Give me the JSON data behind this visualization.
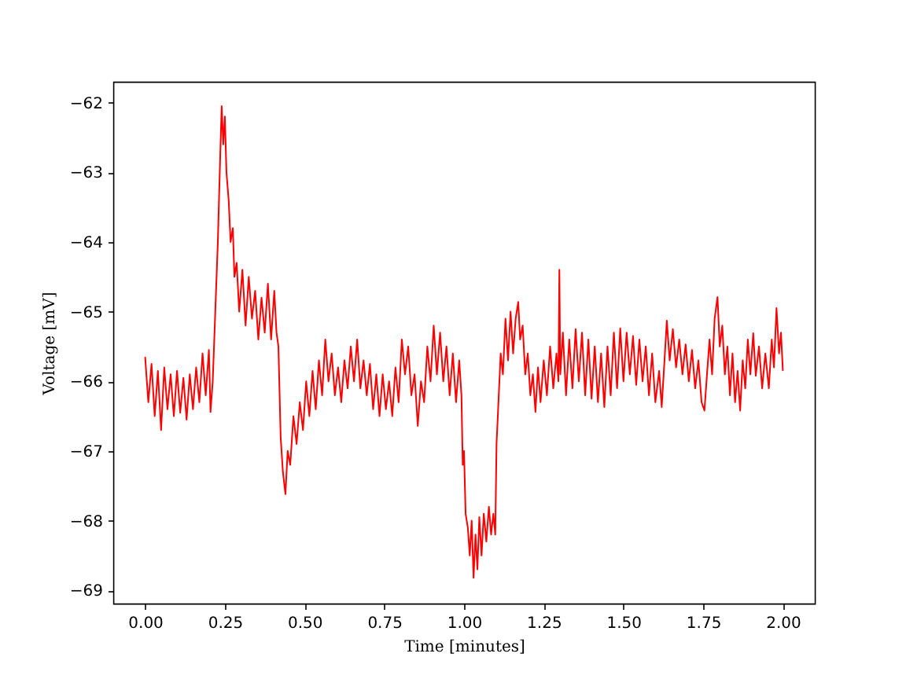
{
  "chart_data": {
    "type": "line",
    "xlabel": "Time [minutes]",
    "ylabel": "Voltage [mV]",
    "xlim": [
      -0.1,
      2.1
    ],
    "ylim": [
      -69.19,
      -61.7
    ],
    "xticks": [
      {
        "value": 0,
        "label": "0.00"
      },
      {
        "value": 0.25,
        "label": "0.25"
      },
      {
        "value": 0.5,
        "label": "0.50"
      },
      {
        "value": 0.75,
        "label": "0.75"
      },
      {
        "value": 1,
        "label": "1.00"
      },
      {
        "value": 1.25,
        "label": "1.25"
      },
      {
        "value": 1.5,
        "label": "1.50"
      },
      {
        "value": 1.75,
        "label": "1.75"
      },
      {
        "value": 2,
        "label": "2.00"
      }
    ],
    "yticks": [
      {
        "value": -69,
        "label": "−69"
      },
      {
        "value": -68,
        "label": "−68"
      },
      {
        "value": -67,
        "label": "−67"
      },
      {
        "value": -66,
        "label": "−66"
      },
      {
        "value": -65,
        "label": "−65"
      },
      {
        "value": -64,
        "label": "−64"
      },
      {
        "value": -63,
        "label": "−63"
      },
      {
        "value": -62,
        "label": "−62"
      }
    ],
    "x": [
      0.0,
      0.01,
      0.02,
      0.03,
      0.04,
      0.05,
      0.06,
      0.07,
      0.08,
      0.09,
      0.1,
      0.11,
      0.12,
      0.13,
      0.14,
      0.15,
      0.16,
      0.17,
      0.18,
      0.19,
      0.2,
      0.205,
      0.212,
      0.22,
      0.228,
      0.234,
      0.24,
      0.245,
      0.25,
      0.255,
      0.262,
      0.268,
      0.275,
      0.28,
      0.287,
      0.295,
      0.305,
      0.315,
      0.325,
      0.335,
      0.345,
      0.355,
      0.365,
      0.375,
      0.385,
      0.395,
      0.405,
      0.412,
      0.418,
      0.425,
      0.432,
      0.44,
      0.447,
      0.455,
      0.465,
      0.475,
      0.485,
      0.495,
      0.505,
      0.515,
      0.525,
      0.535,
      0.545,
      0.555,
      0.565,
      0.575,
      0.585,
      0.595,
      0.605,
      0.615,
      0.625,
      0.635,
      0.645,
      0.655,
      0.665,
      0.675,
      0.685,
      0.695,
      0.705,
      0.715,
      0.725,
      0.735,
      0.745,
      0.755,
      0.765,
      0.775,
      0.785,
      0.795,
      0.805,
      0.815,
      0.825,
      0.835,
      0.845,
      0.855,
      0.865,
      0.875,
      0.885,
      0.895,
      0.905,
      0.915,
      0.925,
      0.935,
      0.945,
      0.955,
      0.965,
      0.975,
      0.985,
      0.992,
      0.996,
      1.0,
      1.005,
      1.012,
      1.018,
      1.024,
      1.03,
      1.036,
      1.042,
      1.048,
      1.055,
      1.062,
      1.07,
      1.078,
      1.085,
      1.092,
      1.098,
      1.102,
      1.108,
      1.115,
      1.122,
      1.13,
      1.138,
      1.146,
      1.154,
      1.162,
      1.17,
      1.176,
      1.184,
      1.192,
      1.2,
      1.208,
      1.216,
      1.224,
      1.232,
      1.24,
      1.25,
      1.26,
      1.27,
      1.28,
      1.29,
      1.296,
      1.299,
      1.302,
      1.31,
      1.32,
      1.33,
      1.34,
      1.35,
      1.36,
      1.37,
      1.38,
      1.39,
      1.4,
      1.41,
      1.42,
      1.43,
      1.44,
      1.45,
      1.46,
      1.47,
      1.48,
      1.49,
      1.5,
      1.51,
      1.52,
      1.53,
      1.54,
      1.55,
      1.56,
      1.57,
      1.58,
      1.59,
      1.6,
      1.612,
      1.62,
      1.63,
      1.636,
      1.645,
      1.655,
      1.665,
      1.675,
      1.685,
      1.695,
      1.705,
      1.715,
      1.725,
      1.735,
      1.745,
      1.754,
      1.762,
      1.77,
      1.778,
      1.786,
      1.795,
      1.802,
      1.81,
      1.818,
      1.826,
      1.834,
      1.842,
      1.85,
      1.858,
      1.866,
      1.874,
      1.882,
      1.89,
      1.898,
      1.907,
      1.915,
      1.925,
      1.935,
      1.945,
      1.956,
      1.965,
      1.972,
      1.98,
      1.988,
      1.994,
      2.0
    ],
    "series": [
      {
        "color": "#ff0000",
        "values": [
          -65.65,
          -66.3,
          -65.75,
          -66.5,
          -65.85,
          -66.7,
          -65.8,
          -66.4,
          -65.9,
          -66.5,
          -65.85,
          -66.45,
          -65.95,
          -66.55,
          -65.9,
          -66.4,
          -65.8,
          -66.3,
          -65.6,
          -66.2,
          -65.55,
          -66.44,
          -66.0,
          -65.0,
          -64.0,
          -63.0,
          -62.05,
          -62.6,
          -62.2,
          -63.0,
          -63.4,
          -64.0,
          -63.8,
          -64.5,
          -64.3,
          -65.0,
          -64.4,
          -65.2,
          -64.5,
          -65.1,
          -64.7,
          -65.4,
          -64.8,
          -65.3,
          -64.6,
          -65.4,
          -64.7,
          -65.3,
          -65.5,
          -66.8,
          -67.3,
          -67.62,
          -67.0,
          -67.2,
          -66.5,
          -66.9,
          -66.3,
          -66.7,
          -66.0,
          -66.5,
          -65.85,
          -66.4,
          -65.7,
          -66.2,
          -65.4,
          -66.0,
          -65.6,
          -66.2,
          -65.8,
          -66.3,
          -65.7,
          -66.1,
          -65.5,
          -66.0,
          -65.4,
          -66.1,
          -65.7,
          -66.2,
          -65.75,
          -66.4,
          -65.9,
          -66.5,
          -65.9,
          -66.4,
          -66.0,
          -66.5,
          -65.8,
          -66.3,
          -65.4,
          -65.9,
          -65.5,
          -66.2,
          -65.9,
          -66.64,
          -66.0,
          -66.3,
          -65.5,
          -66.0,
          -65.2,
          -65.9,
          -65.3,
          -66.0,
          -65.5,
          -66.2,
          -65.6,
          -66.3,
          -65.7,
          -66.2,
          -67.2,
          -67.0,
          -67.9,
          -68.1,
          -68.5,
          -68.0,
          -68.82,
          -68.2,
          -68.7,
          -67.95,
          -68.5,
          -67.9,
          -68.3,
          -67.8,
          -68.2,
          -67.9,
          -68.2,
          -66.9,
          -66.3,
          -65.6,
          -65.9,
          -65.1,
          -65.7,
          -65.0,
          -65.6,
          -65.1,
          -64.86,
          -65.4,
          -65.2,
          -65.9,
          -65.6,
          -66.2,
          -65.9,
          -66.44,
          -65.8,
          -66.3,
          -65.7,
          -66.2,
          -65.5,
          -66.1,
          -65.6,
          -66.0,
          -64.4,
          -65.9,
          -65.3,
          -66.2,
          -65.4,
          -66.1,
          -65.25,
          -66.0,
          -65.3,
          -66.2,
          -65.4,
          -66.25,
          -65.5,
          -66.3,
          -65.6,
          -66.37,
          -65.5,
          -66.2,
          -65.3,
          -66.1,
          -65.24,
          -66.0,
          -65.3,
          -65.9,
          -65.35,
          -66.05,
          -65.4,
          -66.0,
          -65.5,
          -66.2,
          -65.6,
          -66.3,
          -65.85,
          -66.37,
          -65.6,
          -65.13,
          -65.7,
          -65.25,
          -65.8,
          -65.4,
          -65.9,
          -65.47,
          -66.0,
          -65.55,
          -66.1,
          -65.7,
          -66.3,
          -66.42,
          -65.9,
          -65.4,
          -65.9,
          -65.1,
          -64.79,
          -65.5,
          -65.2,
          -65.9,
          -65.5,
          -66.2,
          -65.6,
          -66.3,
          -65.85,
          -66.42,
          -65.7,
          -66.1,
          -65.4,
          -65.9,
          -65.31,
          -65.92,
          -65.5,
          -66.1,
          -65.6,
          -66.1,
          -65.4,
          -65.8,
          -64.95,
          -65.6,
          -65.3,
          -65.85
        ]
      }
    ]
  }
}
